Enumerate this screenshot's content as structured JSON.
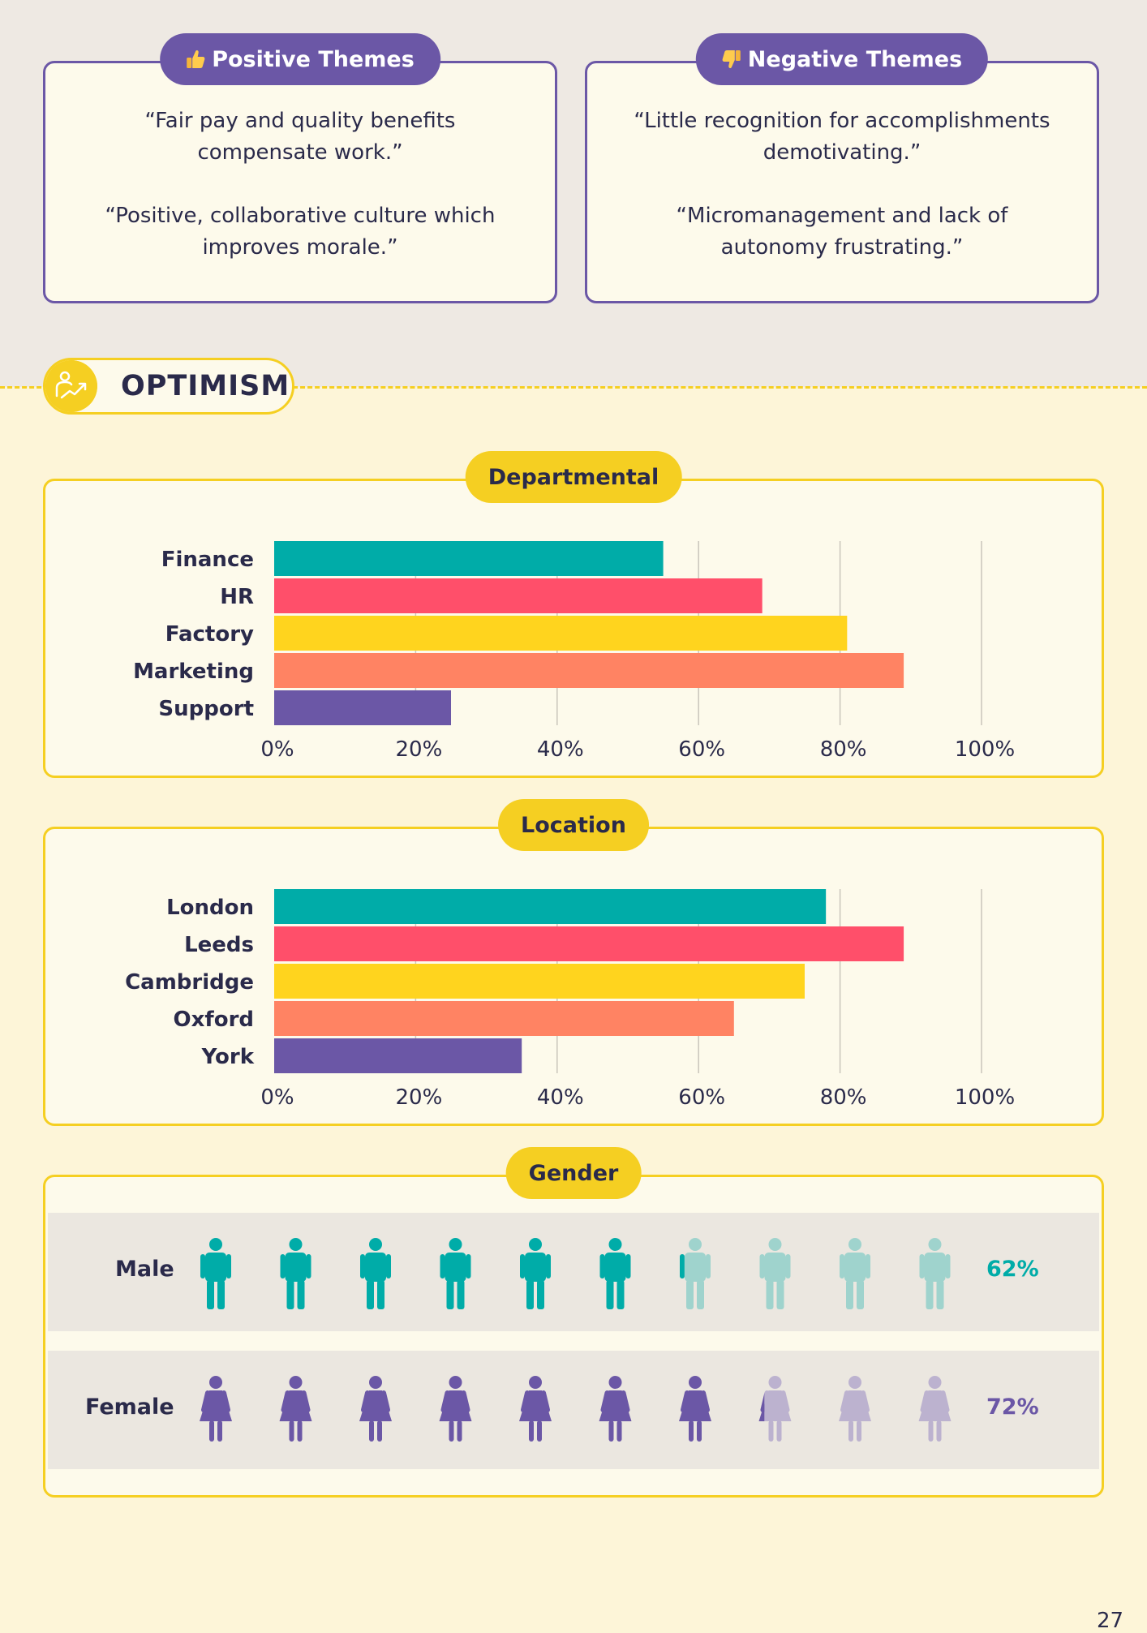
{
  "positive": {
    "title": "Positive Themes",
    "quotes": [
      "“Fair pay and quality benefits compensate work.”",
      "“Positive, collaborative culture which improves morale.”"
    ]
  },
  "negative": {
    "title": "Negative Themes",
    "quotes": [
      "“Little recognition for accomplishments demotivating.”",
      "“Micromanagement and lack of autonomy frustrating.”"
    ]
  },
  "section": {
    "title": "OPTIMISM",
    "icon": "person-growth-icon"
  },
  "colors": {
    "teal": "#00aca8",
    "red": "#ff4f6a",
    "yellow": "#ffd41e",
    "orange": "#ff8363",
    "purple": "#6b57a6"
  },
  "chart_data": [
    {
      "type": "bar",
      "orientation": "horizontal",
      "title": "Departmental",
      "categories": [
        "Finance",
        "HR",
        "Factory",
        "Marketing",
        "Support"
      ],
      "values": [
        55,
        69,
        81,
        89,
        25
      ],
      "xlim": [
        0,
        100
      ],
      "xticks": [
        "0%",
        "20%",
        "40%",
        "60%",
        "80%",
        "100%"
      ]
    },
    {
      "type": "bar",
      "orientation": "horizontal",
      "title": "Location",
      "categories": [
        "London",
        "Leeds",
        "Cambridge",
        "Oxford",
        "York"
      ],
      "values": [
        78,
        89,
        75,
        65,
        35
      ],
      "xlim": [
        0,
        100
      ],
      "xticks": [
        "0%",
        "20%",
        "40%",
        "60%",
        "80%",
        "100%"
      ]
    },
    {
      "type": "pictogram",
      "title": "Gender",
      "categories": [
        "Male",
        "Female"
      ],
      "values": [
        62,
        72
      ],
      "labels": [
        "62%",
        "72%"
      ]
    }
  ],
  "page_number": "27"
}
